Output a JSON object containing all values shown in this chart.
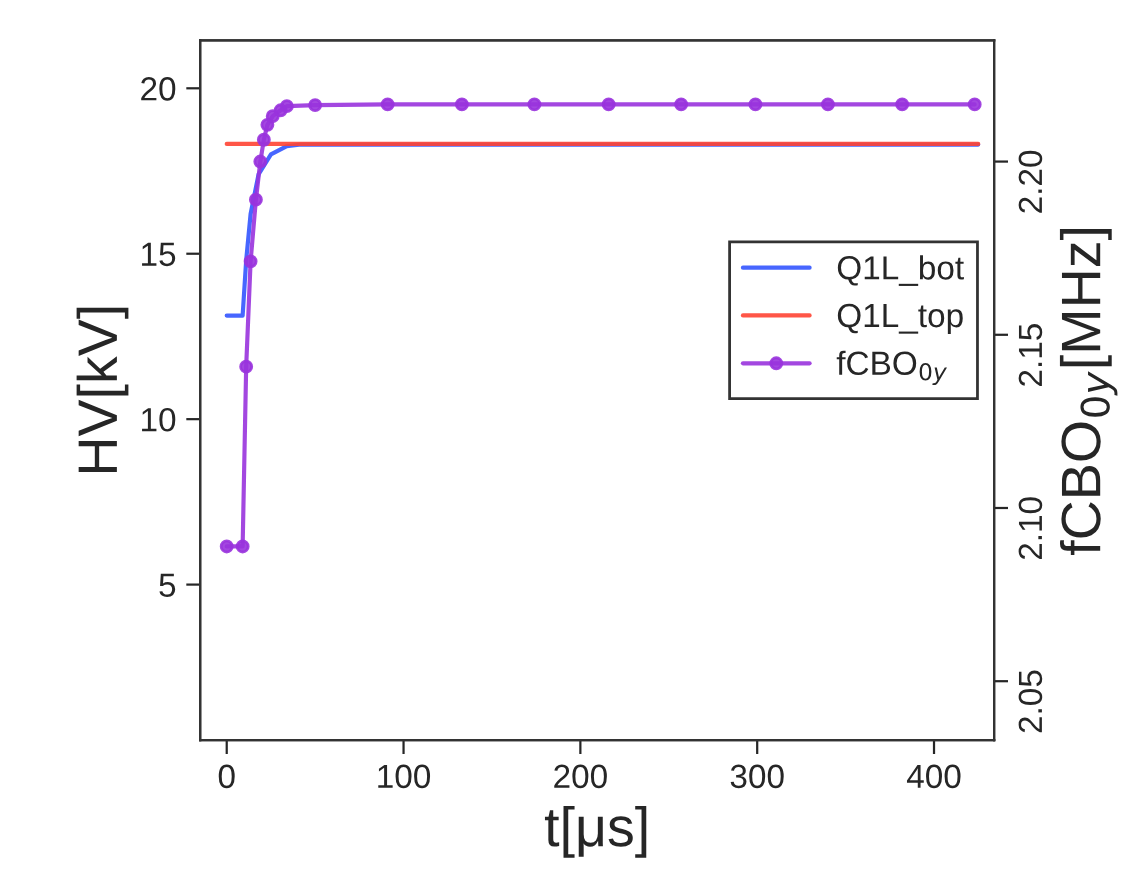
{
  "chart_data": {
    "type": "line",
    "xlabel": "t[μs]",
    "ylabel": "HV[kV]",
    "y2label": "fCBO$_{0y}$[MHz]",
    "xlim": [
      -15,
      434
    ],
    "xticks": [
      0,
      100,
      200,
      300,
      400
    ],
    "ylim": [
      0.3,
      21.45
    ],
    "yticks": [
      5,
      10,
      15,
      20
    ],
    "y2lim": [
      2.033,
      2.235
    ],
    "y2ticks": [
      {
        "value": 2.05,
        "label": "2.05"
      },
      {
        "value": 2.1,
        "label": "2.10"
      },
      {
        "value": 2.15,
        "label": "2.15"
      },
      {
        "value": 2.2,
        "label": "2.20"
      }
    ],
    "legend": "right",
    "grid": false,
    "series": [
      {
        "name": "Q1L_bot",
        "color": "#3355ff",
        "marker": "none",
        "x": [
          0,
          9,
          11,
          13.5,
          18,
          25,
          34,
          42,
          425
        ],
        "values": [
          13.13,
          13.13,
          14.8,
          16.2,
          17.4,
          18.0,
          18.25,
          18.3,
          18.3
        ]
      },
      {
        "name": "Q1L_top",
        "color": "#ff4433",
        "marker": "none",
        "x": [
          0,
          425
        ],
        "values": [
          18.32,
          18.32
        ]
      },
      {
        "name": "fCBO$_{0y}$",
        "color": "#9933dd",
        "marker": "circle",
        "axis": "y2",
        "x": [
          0,
          9,
          11,
          13.5,
          16.5,
          19,
          21,
          23,
          26,
          30.5,
          34,
          50,
          91,
          133,
          174,
          216,
          257,
          299,
          340,
          382,
          423
        ],
        "values": [
          2.0889,
          2.0889,
          2.1408,
          2.1712,
          2.189,
          2.2,
          2.2063,
          2.2106,
          2.2131,
          2.2148,
          2.216,
          2.2163,
          2.2165,
          2.2165,
          2.2165,
          2.2165,
          2.2165,
          2.2165,
          2.2165,
          2.2165,
          2.2165
        ]
      }
    ]
  }
}
